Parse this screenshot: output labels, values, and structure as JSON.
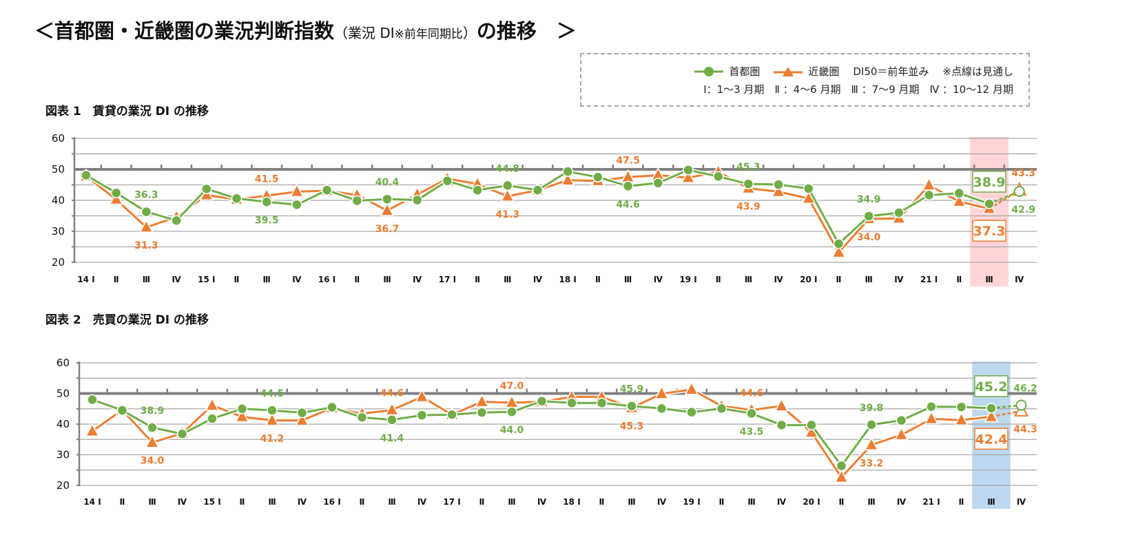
{
  "title": {
    "prefix": "＜首都圏・近畿圏の業況判断指数",
    "paren_open": "（業況 DI",
    "note": "※前年同期比",
    "paren_close": "）",
    "suffix": "の推移　＞"
  },
  "legend": {
    "series1": "首都圏",
    "series2": "近畿圏",
    "baseline_note": "DI50＝前年並み",
    "dotted_note": "※点線は見通し",
    "quarters": "Ⅰ：1～3 月期　Ⅱ ：4～6 月期　Ⅲ ：7～9 月期　Ⅳ ：10～12 月期"
  },
  "colors": {
    "shutoken": "#70ad47",
    "kinki": "#ed7d31",
    "grid": "#a6a6a6",
    "axis": "#808080",
    "highlight1": "#ffd5d8",
    "highlight2": "#bdd7ee"
  },
  "chart_data": [
    {
      "type": "line",
      "title": "図表 1　賃貸の業況 DI の推移",
      "ylim": [
        20,
        60
      ],
      "yticks": [
        20,
        30,
        40,
        50,
        60
      ],
      "baseline": 50,
      "categories": [
        "14 Ⅰ",
        "Ⅱ",
        "Ⅲ",
        "Ⅳ",
        "15 Ⅰ",
        "Ⅱ",
        "Ⅲ",
        "Ⅳ",
        "16 Ⅰ",
        "Ⅱ",
        "Ⅲ",
        "Ⅳ",
        "17 Ⅰ",
        "Ⅱ",
        "Ⅲ",
        "Ⅳ",
        "18 Ⅰ",
        "Ⅱ",
        "Ⅲ",
        "Ⅳ",
        "19 Ⅰ",
        "Ⅱ",
        "Ⅲ",
        "Ⅳ",
        "20 Ⅰ",
        "Ⅱ",
        "Ⅲ",
        "Ⅳ",
        "21 Ⅰ",
        "Ⅱ",
        "Ⅲ",
        "Ⅳ"
      ],
      "highlight_category": "21 Ⅲ",
      "highlight_color": "#ffd5d8",
      "forecast_category": "21 Ⅳ",
      "series": [
        {
          "name": "首都圏",
          "marker": "circle",
          "values": [
            48.1,
            42.4,
            36.3,
            33.5,
            43.7,
            40.6,
            39.5,
            38.6,
            43.3,
            39.9,
            40.4,
            40.1,
            46.3,
            43.3,
            44.8,
            43.3,
            49.3,
            47.5,
            44.6,
            45.6,
            49.8,
            47.7,
            45.3,
            45.1,
            43.8,
            26.0,
            34.9,
            36.0,
            41.7,
            42.3,
            38.9,
            42.9
          ]
        },
        {
          "name": "近畿圏",
          "marker": "triangle",
          "values": [
            47.8,
            40.3,
            31.3,
            34.6,
            41.7,
            40.3,
            41.5,
            42.8,
            43.1,
            41.7,
            36.7,
            41.9,
            47.0,
            45.3,
            41.3,
            43.3,
            46.5,
            46.3,
            47.5,
            48.1,
            47.3,
            49.2,
            43.9,
            42.8,
            40.6,
            23.2,
            34.0,
            34.2,
            44.9,
            39.6,
            37.3,
            43.3
          ]
        }
      ],
      "labels": [
        {
          "s": 0,
          "i": 2,
          "text": "36.3"
        },
        {
          "s": 1,
          "i": 2,
          "text": "31.3"
        },
        {
          "s": 1,
          "i": 6,
          "text": "41.5"
        },
        {
          "s": 0,
          "i": 6,
          "text": "39.5"
        },
        {
          "s": 0,
          "i": 10,
          "text": "40.4"
        },
        {
          "s": 1,
          "i": 10,
          "text": "36.7"
        },
        {
          "s": 0,
          "i": 14,
          "text": "44.8"
        },
        {
          "s": 1,
          "i": 14,
          "text": "41.3"
        },
        {
          "s": 1,
          "i": 18,
          "text": "47.5"
        },
        {
          "s": 0,
          "i": 18,
          "text": "44.6"
        },
        {
          "s": 0,
          "i": 22,
          "text": "45.3"
        },
        {
          "s": 1,
          "i": 22,
          "text": "43.9"
        },
        {
          "s": 0,
          "i": 26,
          "text": "34.9"
        },
        {
          "s": 1,
          "i": 26,
          "text": "34.0"
        },
        {
          "s": 0,
          "i": 30,
          "text": "38.9",
          "boxed": true
        },
        {
          "s": 1,
          "i": 30,
          "text": "37.3",
          "boxed": true
        },
        {
          "s": 1,
          "i": 31,
          "text": "43.3"
        },
        {
          "s": 0,
          "i": 31,
          "text": "42.9"
        }
      ]
    },
    {
      "type": "line",
      "title": "図表 2　売買の業況 DI の推移",
      "ylim": [
        20,
        60
      ],
      "yticks": [
        20,
        30,
        40,
        50,
        60
      ],
      "baseline": 50,
      "categories": [
        "14 Ⅰ",
        "Ⅱ",
        "Ⅲ",
        "Ⅳ",
        "15 Ⅰ",
        "Ⅱ",
        "Ⅲ",
        "Ⅳ",
        "16 Ⅰ",
        "Ⅱ",
        "Ⅲ",
        "Ⅳ",
        "17 Ⅰ",
        "Ⅱ",
        "Ⅲ",
        "Ⅳ",
        "18 Ⅰ",
        "Ⅱ",
        "Ⅲ",
        "Ⅳ",
        "19 Ⅰ",
        "Ⅱ",
        "Ⅲ",
        "Ⅳ",
        "20 Ⅰ",
        "Ⅱ",
        "Ⅲ",
        "Ⅳ",
        "21 Ⅰ",
        "Ⅱ",
        "Ⅲ",
        "Ⅳ"
      ],
      "highlight_category": "21 Ⅲ",
      "highlight_color": "#bdd7ee",
      "forecast_category": "21 Ⅳ",
      "series": [
        {
          "name": "首都圏",
          "marker": "circle",
          "values": [
            48.0,
            44.5,
            38.9,
            36.8,
            41.8,
            45.0,
            44.5,
            43.7,
            45.5,
            42.2,
            41.4,
            42.9,
            43.1,
            43.8,
            44.0,
            47.5,
            46.9,
            46.9,
            45.9,
            45.1,
            43.9,
            45.1,
            43.5,
            39.7,
            39.7,
            26.4,
            39.8,
            41.2,
            45.7,
            45.6,
            45.2,
            46.2
          ]
        },
        {
          "name": "近畿圏",
          "marker": "triangle",
          "values": [
            37.7,
            44.6,
            34.0,
            37.0,
            46.1,
            42.4,
            41.2,
            41.2,
            45.3,
            43.4,
            44.6,
            48.9,
            43.1,
            47.3,
            47.0,
            47.3,
            48.9,
            48.9,
            45.3,
            49.9,
            51.3,
            45.9,
            44.6,
            45.9,
            37.3,
            22.6,
            33.2,
            36.5,
            41.7,
            41.3,
            42.4,
            44.3
          ]
        }
      ],
      "labels": [
        {
          "s": 0,
          "i": 2,
          "text": "38.9"
        },
        {
          "s": 1,
          "i": 2,
          "text": "34.0"
        },
        {
          "s": 0,
          "i": 6,
          "text": "44.5"
        },
        {
          "s": 1,
          "i": 6,
          "text": "41.2"
        },
        {
          "s": 1,
          "i": 10,
          "text": "44.6"
        },
        {
          "s": 0,
          "i": 10,
          "text": "41.4"
        },
        {
          "s": 1,
          "i": 14,
          "text": "47.0"
        },
        {
          "s": 0,
          "i": 14,
          "text": "44.0"
        },
        {
          "s": 0,
          "i": 18,
          "text": "45.9"
        },
        {
          "s": 1,
          "i": 18,
          "text": "45.3"
        },
        {
          "s": 1,
          "i": 22,
          "text": "44.6"
        },
        {
          "s": 0,
          "i": 22,
          "text": "43.5"
        },
        {
          "s": 0,
          "i": 26,
          "text": "39.8"
        },
        {
          "s": 1,
          "i": 26,
          "text": "33.2"
        },
        {
          "s": 0,
          "i": 30,
          "text": "45.2",
          "boxed": true
        },
        {
          "s": 1,
          "i": 30,
          "text": "42.4",
          "boxed": true
        },
        {
          "s": 0,
          "i": 31,
          "text": "46.2"
        },
        {
          "s": 1,
          "i": 31,
          "text": "44.3"
        }
      ]
    }
  ]
}
